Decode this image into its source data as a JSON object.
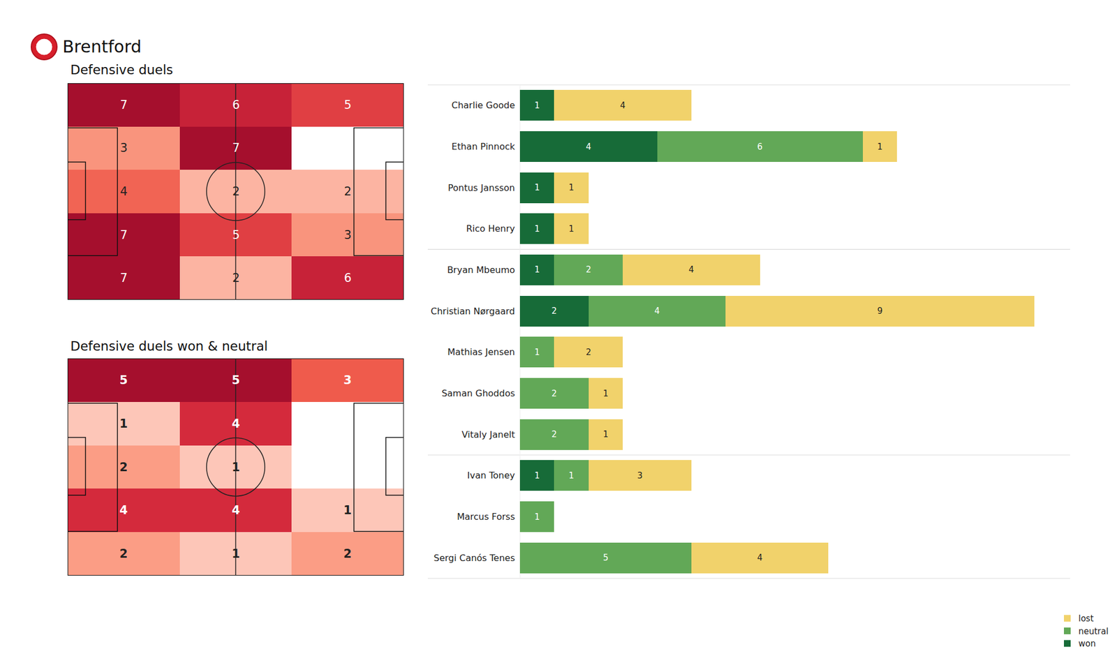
{
  "title": "Brentford",
  "chart_data": [
    {
      "type": "heatmap",
      "title": "Defensive duels",
      "tick_labels": false,
      "data_labels": true,
      "cells": [
        [
          7,
          6,
          5
        ],
        [
          3,
          7,
          null
        ],
        [
          4,
          2,
          2
        ],
        [
          7,
          5,
          3
        ],
        [
          7,
          2,
          6
        ]
      ]
    },
    {
      "type": "heatmap",
      "title": "Defensive duels won & neutral",
      "tick_labels": false,
      "data_labels": true,
      "cells": [
        [
          5,
          5,
          3
        ],
        [
          1,
          4,
          null
        ],
        [
          2,
          1,
          null
        ],
        [
          4,
          4,
          1
        ],
        [
          2,
          1,
          2
        ]
      ]
    },
    {
      "type": "bar",
      "orientation": "horizontal",
      "stacked": true,
      "data_labels": true,
      "tick_labels": "y",
      "legend": "lower right",
      "xlim": [
        0,
        16
      ],
      "categories": [
        "Charlie Goode",
        "Ethan Pinnock",
        "Pontus Jansson",
        "Rico Henry",
        "Bryan Mbeumo",
        "Christian Nørgaard",
        "Mathias Jensen",
        "Saman Ghoddos",
        "Vitaly Janelt",
        "Ivan Toney",
        "Marcus Forss",
        "Sergi Canós Tenes"
      ],
      "series": [
        {
          "name": "won",
          "color": "#176b38",
          "values": [
            1,
            4,
            1,
            1,
            1,
            2,
            null,
            null,
            null,
            1,
            null,
            null
          ]
        },
        {
          "name": "neutral",
          "color": "#62a857",
          "values": [
            null,
            6,
            null,
            null,
            2,
            4,
            1,
            2,
            2,
            1,
            1,
            5
          ]
        },
        {
          "name": "lost",
          "color": "#f1d26b",
          "values": [
            4,
            1,
            1,
            1,
            4,
            9,
            2,
            1,
            1,
            3,
            null,
            4
          ]
        }
      ]
    }
  ]
}
